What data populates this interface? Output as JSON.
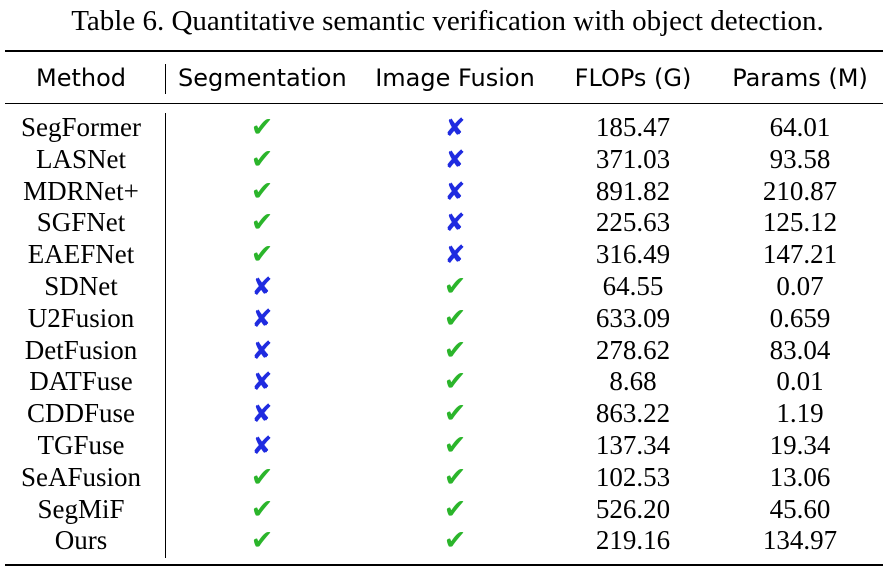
{
  "caption": "Table 6. Quantitative semantic verification with object detection.",
  "columns": [
    "Method",
    "Segmentation",
    "Image Fusion",
    "FLOPs (G)",
    "Params (M)"
  ],
  "colors": {
    "check": "#2bb52b",
    "cross": "#1f2be0"
  },
  "icons": {
    "yes": "✔",
    "no": "✘"
  },
  "rows": [
    {
      "method": "SegFormer",
      "segmentation": true,
      "image_fusion": false,
      "flops": "185.47",
      "params": "64.01"
    },
    {
      "method": "LASNet",
      "segmentation": true,
      "image_fusion": false,
      "flops": "371.03",
      "params": "93.58"
    },
    {
      "method": "MDRNet+",
      "segmentation": true,
      "image_fusion": false,
      "flops": "891.82",
      "params": "210.87"
    },
    {
      "method": "SGFNet",
      "segmentation": true,
      "image_fusion": false,
      "flops": "225.63",
      "params": "125.12"
    },
    {
      "method": "EAEFNet",
      "segmentation": true,
      "image_fusion": false,
      "flops": "316.49",
      "params": "147.21"
    },
    {
      "method": "SDNet",
      "segmentation": false,
      "image_fusion": true,
      "flops": "64.55",
      "params": "0.07"
    },
    {
      "method": "U2Fusion",
      "segmentation": false,
      "image_fusion": true,
      "flops": "633.09",
      "params": "0.659"
    },
    {
      "method": "DetFusion",
      "segmentation": false,
      "image_fusion": true,
      "flops": "278.62",
      "params": "83.04"
    },
    {
      "method": "DATFuse",
      "segmentation": false,
      "image_fusion": true,
      "flops": "8.68",
      "params": "0.01"
    },
    {
      "method": "CDDFuse",
      "segmentation": false,
      "image_fusion": true,
      "flops": "863.22",
      "params": "1.19"
    },
    {
      "method": "TGFuse",
      "segmentation": false,
      "image_fusion": true,
      "flops": "137.34",
      "params": "19.34"
    },
    {
      "method": "SeAFusion",
      "segmentation": true,
      "image_fusion": true,
      "flops": "102.53",
      "params": "13.06"
    },
    {
      "method": "SegMiF",
      "segmentation": true,
      "image_fusion": true,
      "flops": "526.20",
      "params": "45.60"
    },
    {
      "method": "Ours",
      "segmentation": true,
      "image_fusion": true,
      "flops": "219.16",
      "params": "134.97"
    }
  ]
}
